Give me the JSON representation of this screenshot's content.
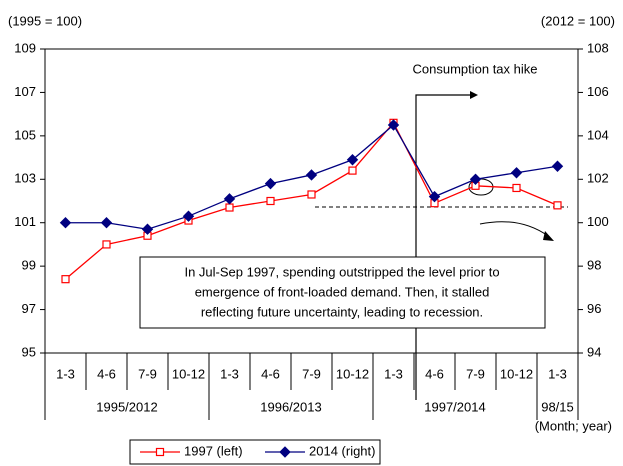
{
  "chart_data": {
    "type": "line",
    "y_label": "(1995 = 100)",
    "y2_label": "(2012 = 100)",
    "x_label": "(Month; year)",
    "categories": [
      "1-3",
      "4-6",
      "7-9",
      "10-12",
      "1-3",
      "4-6",
      "7-9",
      "10-12",
      "1-3",
      "4-6",
      "7-9",
      "10-12",
      "1-3"
    ],
    "group_labels": [
      "1995/2012",
      null,
      null,
      null,
      "1996/2013",
      null,
      null,
      null,
      "1997/2014",
      null,
      null,
      null,
      "98/15"
    ],
    "series": [
      {
        "name": "1997 (left)",
        "color": "#ff0000",
        "marker": "square",
        "values": [
          98.4,
          100.0,
          100.4,
          101.1,
          101.7,
          102.0,
          102.3,
          103.4,
          105.6,
          101.9,
          102.7,
          102.6,
          101.8
        ]
      },
      {
        "name": "2014 (right)",
        "color": "#000080",
        "marker": "diamond",
        "axis": "y2",
        "values": [
          100.0,
          100.0,
          99.7,
          100.3,
          101.1,
          101.8,
          102.2,
          102.9,
          104.5,
          101.2,
          102.0,
          102.3,
          102.6
        ]
      }
    ],
    "ylim": [
      95,
      109
    ],
    "yticks": [
      95,
      97,
      99,
      101,
      103,
      105,
      107,
      109
    ],
    "y2lim": [
      94,
      108
    ],
    "y2ticks": [
      94,
      96,
      98,
      100,
      102,
      104,
      106,
      108
    ],
    "annotations": [
      "Consumption tax hike"
    ],
    "note_lines": [
      "In Jul-Sep 1997, spending outstripped the level prior to",
      "emergence of front-loaded demand. Then, it stalled",
      "reflecting future uncertainty, leading to recession."
    ]
  }
}
